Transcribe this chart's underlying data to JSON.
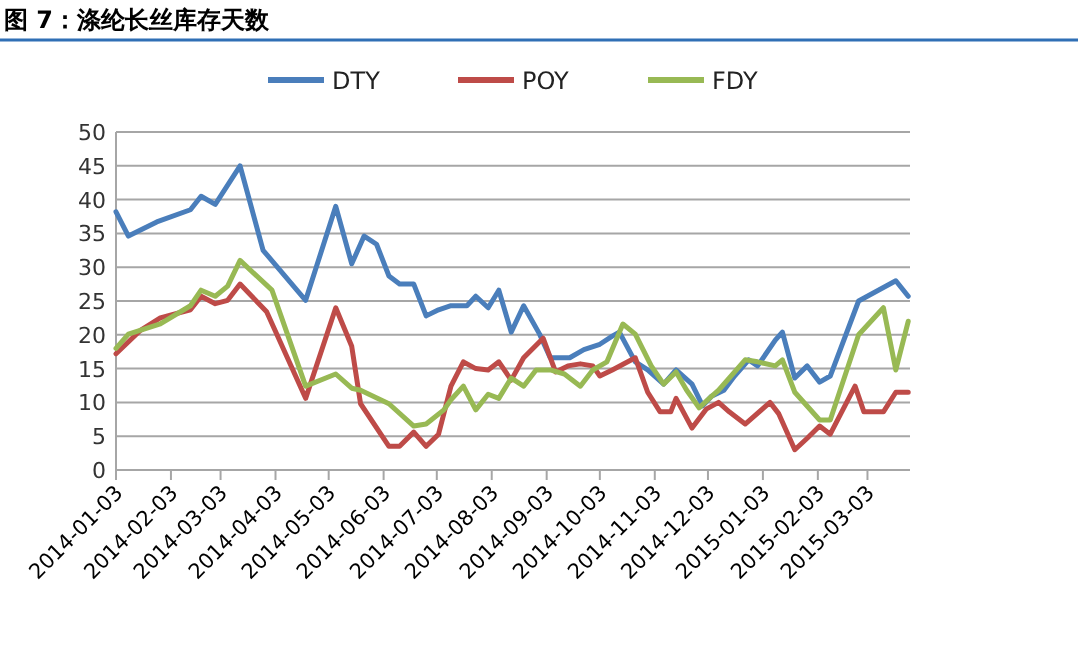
{
  "chart_data": {
    "type": "line",
    "title": "图 7：涤纶长丝库存天数",
    "xlim": [
      "2014-01-03",
      "2015-03-27"
    ],
    "xticks": [
      "2014-01-03",
      "2014-02-03",
      "2014-03-03",
      "2014-04-03",
      "2014-05-03",
      "2014-06-03",
      "2014-07-03",
      "2014-08-03",
      "2014-09-03",
      "2014-10-03",
      "2014-11-03",
      "2014-12-03",
      "2015-01-03",
      "2015-02-03",
      "2015-03-03"
    ],
    "ylim": [
      0,
      50
    ],
    "yticks": [
      0,
      5,
      10,
      15,
      20,
      25,
      30,
      35,
      40,
      45,
      50
    ],
    "grid": "y",
    "legend": "top",
    "marker": "none",
    "line_style": "solid",
    "series": [
      {
        "name": "DTY",
        "color": "#4a7ebb",
        "x": [
          "2014-01-03",
          "2014-01-10",
          "2014-01-26",
          "2014-02-14",
          "2014-02-20",
          "2014-02-28",
          "2014-03-14",
          "2014-03-27",
          "2014-04-20",
          "2014-05-07",
          "2014-05-16",
          "2014-05-23",
          "2014-05-30",
          "2014-06-06",
          "2014-06-12",
          "2014-06-20",
          "2014-06-27",
          "2014-07-04",
          "2014-07-11",
          "2014-07-20",
          "2014-07-25",
          "2014-08-01",
          "2014-08-07",
          "2014-08-14",
          "2014-08-21",
          "2014-08-30",
          "2014-09-05",
          "2014-09-16",
          "2014-09-24",
          "2014-10-03",
          "2014-10-10",
          "2014-10-14",
          "2014-10-23",
          "2014-10-30",
          "2014-11-08",
          "2014-11-15",
          "2014-11-24",
          "2014-11-30",
          "2014-12-05",
          "2014-12-12",
          "2014-12-18",
          "2014-12-24",
          "2014-12-26",
          "2014-12-31",
          "2015-01-10",
          "2015-01-14",
          "2015-01-21",
          "2015-01-28",
          "2015-02-04",
          "2015-02-10",
          "2015-02-26",
          "2015-03-19",
          "2015-03-26"
        ],
        "values": [
          38.2,
          34.6,
          36.7,
          38.5,
          40.5,
          39.3,
          45,
          32.5,
          25.1,
          39,
          30.5,
          34.6,
          33.4,
          28.7,
          27.5,
          27.5,
          22.8,
          23.7,
          24.3,
          24.3,
          25.7,
          24,
          26.6,
          20.4,
          24.3,
          20.1,
          16.6,
          16.6,
          17.8,
          18.6,
          19.8,
          20.4,
          16,
          14.8,
          12.7,
          14.8,
          12.7,
          9.5,
          10.9,
          11.8,
          13.9,
          15.7,
          16.3,
          15.4,
          19.2,
          20.4,
          13.6,
          15.4,
          13,
          13.9,
          25,
          28,
          25.7
        ]
      },
      {
        "name": "POY",
        "color": "#be4b48",
        "x": [
          "2014-01-03",
          "2014-01-17",
          "2014-01-28",
          "2014-02-14",
          "2014-02-20",
          "2014-02-28",
          "2014-03-07",
          "2014-03-14",
          "2014-03-29",
          "2014-04-20",
          "2014-05-07",
          "2014-05-16",
          "2014-05-21",
          "2014-06-06",
          "2014-06-12",
          "2014-06-20",
          "2014-06-27",
          "2014-07-04",
          "2014-07-11",
          "2014-07-18",
          "2014-07-25",
          "2014-08-01",
          "2014-08-07",
          "2014-08-14",
          "2014-08-21",
          "2014-09-01",
          "2014-09-08",
          "2014-09-15",
          "2014-09-22",
          "2014-09-29",
          "2014-10-03",
          "2014-10-10",
          "2014-10-23",
          "2014-10-30",
          "2014-11-06",
          "2014-11-12",
          "2014-11-15",
          "2014-11-24",
          "2014-12-02",
          "2014-12-09",
          "2014-12-15",
          "2014-12-24",
          "2015-01-07",
          "2015-01-12",
          "2015-01-21",
          "2015-01-28",
          "2015-02-04",
          "2015-02-10",
          "2015-02-24",
          "2015-03-01",
          "2015-03-12",
          "2015-03-19",
          "2015-03-26"
        ],
        "values": [
          17.2,
          20.7,
          22.5,
          23.7,
          25.7,
          24.6,
          25.1,
          27.5,
          23.4,
          10.6,
          24,
          18.3,
          9.8,
          3.5,
          3.5,
          5.6,
          3.5,
          5.3,
          12.4,
          16,
          15,
          14.8,
          16,
          13.3,
          16.6,
          19.5,
          14.5,
          15.4,
          15.7,
          15.4,
          13.9,
          14.8,
          16.6,
          11.5,
          8.6,
          8.6,
          10.6,
          6.2,
          9,
          10,
          8.6,
          6.8,
          10,
          8.3,
          3,
          4.7,
          6.5,
          5.3,
          12.4,
          8.6,
          8.6,
          11.5,
          11.5
        ]
      },
      {
        "name": "FDY",
        "color": "#98b954",
        "x": [
          "2014-01-03",
          "2014-01-10",
          "2014-01-28",
          "2014-02-14",
          "2014-02-20",
          "2014-02-28",
          "2014-03-07",
          "2014-03-14",
          "2014-04-01",
          "2014-04-20",
          "2014-05-07",
          "2014-05-16",
          "2014-05-21",
          "2014-06-06",
          "2014-06-20",
          "2014-06-27",
          "2014-07-07",
          "2014-07-11",
          "2014-07-18",
          "2014-07-25",
          "2014-08-01",
          "2014-08-07",
          "2014-08-14",
          "2014-08-21",
          "2014-08-28",
          "2014-09-05",
          "2014-09-13",
          "2014-09-22",
          "2014-09-29",
          "2014-10-07",
          "2014-10-16",
          "2014-10-23",
          "2014-11-01",
          "2014-11-08",
          "2014-11-15",
          "2014-11-21",
          "2014-11-28",
          "2014-12-05",
          "2014-12-09",
          "2014-12-24",
          "2014-12-31",
          "2015-01-10",
          "2015-01-14",
          "2015-01-21",
          "2015-02-04",
          "2015-02-10",
          "2015-02-26",
          "2015-03-12",
          "2015-03-19",
          "2015-03-26"
        ],
        "values": [
          18,
          20.1,
          21.6,
          24.3,
          26.6,
          25.7,
          27.2,
          31,
          26.6,
          12.4,
          14.2,
          12.1,
          11.8,
          9.8,
          6.5,
          6.8,
          8.9,
          10.4,
          12.4,
          8.9,
          11.2,
          10.6,
          13.6,
          12.4,
          14.8,
          14.8,
          14.2,
          12.4,
          14.8,
          16,
          21.6,
          20.1,
          15.4,
          12.7,
          14.5,
          11.8,
          9.2,
          10.9,
          11.8,
          16.3,
          16,
          15.4,
          16.3,
          11.5,
          7.4,
          7.4,
          20,
          24,
          14.8,
          22
        ]
      }
    ]
  }
}
